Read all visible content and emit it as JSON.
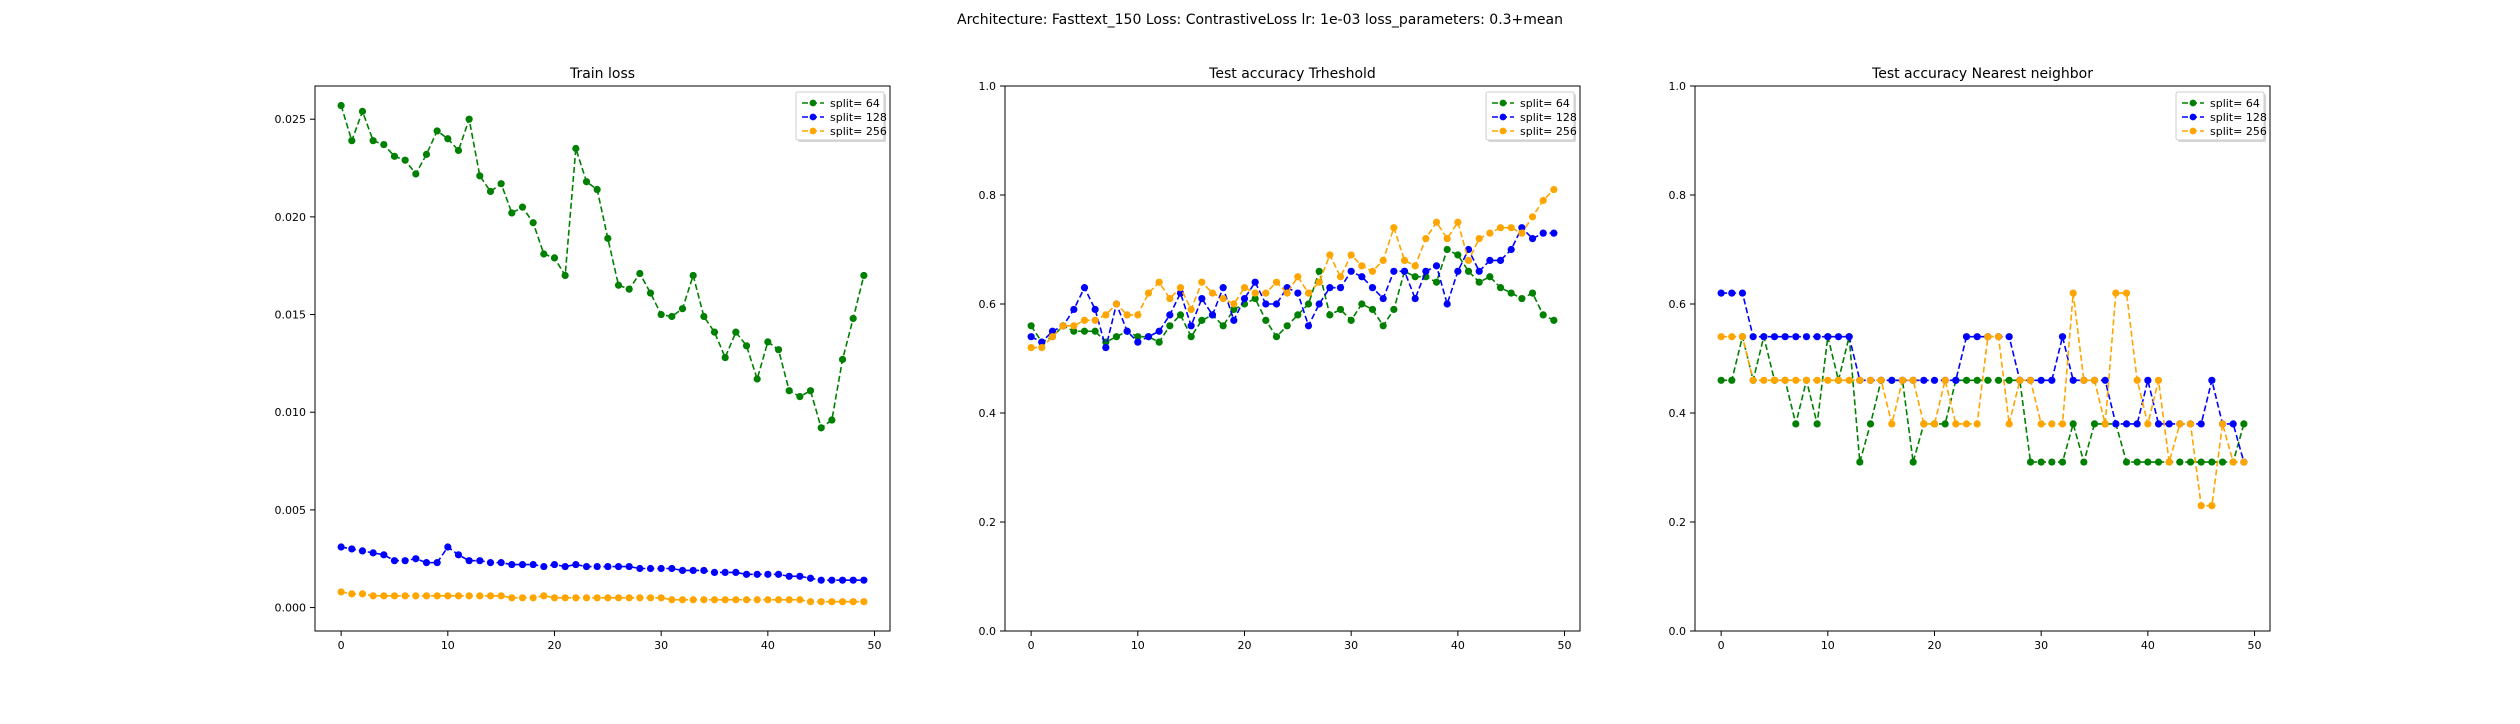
{
  "figure": {
    "suptitle": "Architecture: Fasttext_150 Loss: ContrastiveLoss lr: 1e-03 loss_parameters: 0.3+mean"
  },
  "colors": {
    "split64": "#008000",
    "split128": "#0000ff",
    "split256": "#ffa500"
  },
  "chart_data": [
    {
      "type": "line",
      "title": "Train loss",
      "xlabel": "",
      "ylabel": "",
      "xlim": [
        -2.45,
        51.45
      ],
      "ylim": [
        -0.0012,
        0.0267
      ],
      "xticks": [
        0,
        10,
        20,
        30,
        40,
        50
      ],
      "yticks": [
        0.0,
        0.005,
        0.01,
        0.015,
        0.02,
        0.025
      ],
      "ytick_labels": [
        "0.000",
        "0.005",
        "0.010",
        "0.015",
        "0.020",
        "0.025"
      ],
      "legend_position": "upper right",
      "series": [
        {
          "name": "split= 64",
          "color": "#008000",
          "values": [
            0.0257,
            0.0239,
            0.0254,
            0.0239,
            0.0237,
            0.0231,
            0.0229,
            0.0222,
            0.0232,
            0.0244,
            0.024,
            0.0234,
            0.025,
            0.0221,
            0.0213,
            0.0217,
            0.0202,
            0.0205,
            0.0197,
            0.0181,
            0.0179,
            0.017,
            0.0235,
            0.0218,
            0.0214,
            0.0189,
            0.0165,
            0.0163,
            0.0171,
            0.0161,
            0.015,
            0.0149,
            0.0153,
            0.017,
            0.0149,
            0.0141,
            0.0128,
            0.0141,
            0.0134,
            0.0117,
            0.0136,
            0.0132,
            0.0111,
            0.0108,
            0.0111,
            0.0092,
            0.0096,
            0.0127,
            0.0148,
            0.017
          ]
        },
        {
          "name": "split= 128",
          "color": "#0000ff",
          "values": [
            0.0031,
            0.003,
            0.0029,
            0.0028,
            0.0027,
            0.0024,
            0.0024,
            0.0025,
            0.0023,
            0.0023,
            0.0031,
            0.0027,
            0.0024,
            0.0024,
            0.0023,
            0.0023,
            0.0022,
            0.0022,
            0.0022,
            0.0021,
            0.0022,
            0.0021,
            0.0022,
            0.0021,
            0.0021,
            0.0021,
            0.0021,
            0.0021,
            0.002,
            0.002,
            0.002,
            0.002,
            0.0019,
            0.0019,
            0.0019,
            0.0018,
            0.0018,
            0.0018,
            0.0017,
            0.0017,
            0.0017,
            0.0017,
            0.0016,
            0.0016,
            0.0015,
            0.0014,
            0.0014,
            0.0014,
            0.0014,
            0.0014
          ]
        },
        {
          "name": "split= 256",
          "color": "#ffa500",
          "values": [
            0.0008,
            0.0007,
            0.0007,
            0.0006,
            0.0006,
            0.0006,
            0.0006,
            0.0006,
            0.0006,
            0.0006,
            0.0006,
            0.0006,
            0.0006,
            0.0006,
            0.0006,
            0.0006,
            0.0005,
            0.0005,
            0.0005,
            0.0006,
            0.0005,
            0.0005,
            0.0005,
            0.0005,
            0.0005,
            0.0005,
            0.0005,
            0.0005,
            0.0005,
            0.0005,
            0.0005,
            0.0004,
            0.0004,
            0.0004,
            0.0004,
            0.0004,
            0.0004,
            0.0004,
            0.0004,
            0.0004,
            0.0004,
            0.0004,
            0.0004,
            0.0004,
            0.0003,
            0.0003,
            0.0003,
            0.0003,
            0.0003,
            0.0003
          ]
        }
      ]
    },
    {
      "type": "line",
      "title": "Test accuracy Trheshold",
      "xlabel": "",
      "ylabel": "",
      "xlim": [
        -2.45,
        51.45
      ],
      "ylim": [
        0.0,
        1.0
      ],
      "xticks": [
        0,
        10,
        20,
        30,
        40,
        50
      ],
      "yticks": [
        0.0,
        0.2,
        0.4,
        0.6,
        0.8,
        1.0
      ],
      "ytick_labels": [
        "0.0",
        "0.2",
        "0.4",
        "0.6",
        "0.8",
        "1.0"
      ],
      "legend_position": "upper right",
      "series": [
        {
          "name": "split= 64",
          "color": "#008000",
          "values": [
            0.56,
            0.53,
            0.54,
            0.56,
            0.55,
            0.55,
            0.55,
            0.53,
            0.54,
            0.55,
            0.54,
            0.54,
            0.53,
            0.56,
            0.58,
            0.54,
            0.57,
            0.58,
            0.56,
            0.59,
            0.6,
            0.61,
            0.57,
            0.54,
            0.56,
            0.58,
            0.6,
            0.66,
            0.58,
            0.59,
            0.57,
            0.6,
            0.59,
            0.56,
            0.59,
            0.66,
            0.65,
            0.65,
            0.64,
            0.7,
            0.69,
            0.66,
            0.64,
            0.65,
            0.63,
            0.62,
            0.61,
            0.62,
            0.58,
            0.57
          ]
        },
        {
          "name": "split= 128",
          "color": "#0000ff",
          "values": [
            0.54,
            0.53,
            0.55,
            0.56,
            0.59,
            0.63,
            0.59,
            0.52,
            0.6,
            0.55,
            0.53,
            0.54,
            0.55,
            0.58,
            0.62,
            0.56,
            0.61,
            0.58,
            0.63,
            0.57,
            0.61,
            0.64,
            0.6,
            0.6,
            0.63,
            0.62,
            0.56,
            0.6,
            0.63,
            0.63,
            0.66,
            0.65,
            0.63,
            0.61,
            0.66,
            0.66,
            0.61,
            0.66,
            0.67,
            0.6,
            0.66,
            0.7,
            0.66,
            0.68,
            0.68,
            0.7,
            0.74,
            0.72,
            0.73,
            0.73
          ]
        },
        {
          "name": "split= 256",
          "color": "#ffa500",
          "values": [
            0.52,
            0.52,
            0.54,
            0.56,
            0.56,
            0.57,
            0.57,
            0.58,
            0.6,
            0.58,
            0.58,
            0.62,
            0.64,
            0.61,
            0.63,
            0.59,
            0.64,
            0.62,
            0.61,
            0.6,
            0.63,
            0.62,
            0.62,
            0.64,
            0.62,
            0.65,
            0.62,
            0.64,
            0.69,
            0.65,
            0.69,
            0.67,
            0.66,
            0.68,
            0.74,
            0.68,
            0.67,
            0.72,
            0.75,
            0.72,
            0.75,
            0.68,
            0.72,
            0.73,
            0.74,
            0.74,
            0.73,
            0.76,
            0.79,
            0.81
          ]
        }
      ]
    },
    {
      "type": "line",
      "title": "Test accuracy Nearest neighbor",
      "xlabel": "",
      "ylabel": "",
      "xlim": [
        -2.45,
        51.45
      ],
      "ylim": [
        0.0,
        1.0
      ],
      "xticks": [
        0,
        10,
        20,
        30,
        40,
        50
      ],
      "yticks": [
        0.0,
        0.2,
        0.4,
        0.6,
        0.8,
        1.0
      ],
      "ytick_labels": [
        "0.0",
        "0.2",
        "0.4",
        "0.6",
        "0.8",
        "1.0"
      ],
      "legend_position": "upper right",
      "series": [
        {
          "name": "split= 64",
          "color": "#008000",
          "values": [
            0.46,
            0.46,
            0.54,
            0.46,
            0.54,
            0.46,
            0.46,
            0.38,
            0.46,
            0.38,
            0.54,
            0.46,
            0.54,
            0.31,
            0.38,
            0.46,
            0.46,
            0.46,
            0.31,
            0.38,
            0.38,
            0.38,
            0.46,
            0.46,
            0.46,
            0.46,
            0.46,
            0.46,
            0.46,
            0.31,
            0.31,
            0.31,
            0.31,
            0.38,
            0.31,
            0.38,
            0.38,
            0.38,
            0.31,
            0.31,
            0.31,
            0.31,
            0.31,
            0.31,
            0.31,
            0.31,
            0.31,
            0.31,
            0.31,
            0.38
          ]
        },
        {
          "name": "split= 128",
          "color": "#0000ff",
          "values": [
            0.62,
            0.62,
            0.62,
            0.54,
            0.54,
            0.54,
            0.54,
            0.54,
            0.54,
            0.54,
            0.54,
            0.54,
            0.54,
            0.46,
            0.46,
            0.46,
            0.46,
            0.46,
            0.46,
            0.46,
            0.46,
            0.46,
            0.46,
            0.54,
            0.54,
            0.54,
            0.54,
            0.54,
            0.46,
            0.46,
            0.46,
            0.46,
            0.54,
            0.46,
            0.46,
            0.46,
            0.46,
            0.38,
            0.38,
            0.38,
            0.46,
            0.38,
            0.38,
            0.38,
            0.38,
            0.38,
            0.46,
            0.38,
            0.38,
            0.31
          ]
        },
        {
          "name": "split= 256",
          "color": "#ffa500",
          "values": [
            0.54,
            0.54,
            0.54,
            0.46,
            0.46,
            0.46,
            0.46,
            0.46,
            0.46,
            0.46,
            0.46,
            0.46,
            0.46,
            0.46,
            0.46,
            0.46,
            0.38,
            0.46,
            0.46,
            0.38,
            0.38,
            0.46,
            0.38,
            0.38,
            0.38,
            0.54,
            0.54,
            0.38,
            0.46,
            0.46,
            0.38,
            0.38,
            0.38,
            0.62,
            0.46,
            0.46,
            0.38,
            0.62,
            0.62,
            0.46,
            0.38,
            0.46,
            0.31,
            0.38,
            0.38,
            0.23,
            0.23,
            0.38,
            0.31,
            0.31
          ]
        }
      ]
    }
  ]
}
